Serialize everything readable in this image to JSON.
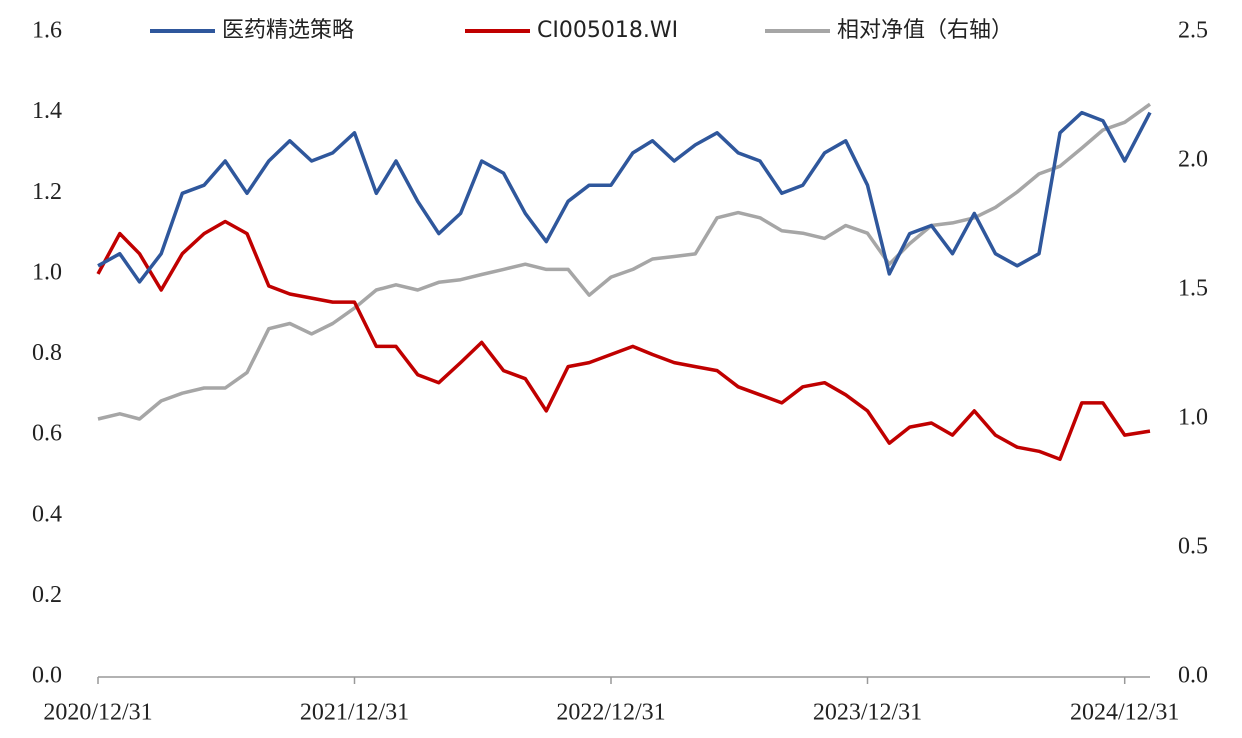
{
  "chart_data": {
    "type": "line",
    "x": [
      "2020/12/31",
      "2021/01/31",
      "2021/02/28",
      "2021/03/31",
      "2021/04/30",
      "2021/05/31",
      "2021/06/30",
      "2021/07/31",
      "2021/08/31",
      "2021/09/30",
      "2021/10/31",
      "2021/11/30",
      "2021/12/31",
      "2022/01/31",
      "2022/02/28",
      "2022/03/31",
      "2022/04/30",
      "2022/05/31",
      "2022/06/30",
      "2022/07/31",
      "2022/08/31",
      "2022/09/30",
      "2022/10/31",
      "2022/11/30",
      "2022/12/31",
      "2023/01/31",
      "2023/02/28",
      "2023/03/31",
      "2023/04/30",
      "2023/05/31",
      "2023/06/30",
      "2023/07/31",
      "2023/08/31",
      "2023/09/30",
      "2023/10/31",
      "2023/11/30",
      "2023/12/31",
      "2024/01/31",
      "2024/02/29",
      "2024/03/31",
      "2024/04/30",
      "2024/05/31",
      "2024/06/30",
      "2024/07/31",
      "2024/08/31",
      "2024/09/30",
      "2024/10/31",
      "2024/11/30",
      "2024/12/31",
      "2025/02/05"
    ],
    "xlim": [
      "2020/12/31",
      "2025/02/05"
    ],
    "xticks": [
      "2020/12/31",
      "2021/12/31",
      "2022/12/31",
      "2023/12/31",
      "2024/12/31"
    ],
    "ylim": [
      0,
      1.6
    ],
    "yticks": [
      {
        "value": 0,
        "label": "0.0"
      },
      0.2,
      0.4,
      0.6,
      0.8,
      {
        "value": 1,
        "label": "1.0"
      },
      1.2,
      1.4,
      1.6
    ],
    "y2lim": [
      0,
      2.5
    ],
    "y2ticks": [
      {
        "value": 0,
        "label": "0.0"
      },
      0.5,
      {
        "value": 1,
        "label": "1.0"
      },
      1.5,
      {
        "value": 2,
        "label": "2.0"
      },
      2.5
    ],
    "grid": false,
    "series": [
      {
        "name": "医药精选策略",
        "color": "#2f579c",
        "values": [
          1.02,
          1.05,
          0.98,
          1.05,
          1.2,
          1.22,
          1.28,
          1.2,
          1.28,
          1.33,
          1.28,
          1.3,
          1.35,
          1.2,
          1.28,
          1.18,
          1.1,
          1.15,
          1.28,
          1.25,
          1.15,
          1.08,
          1.18,
          1.22,
          1.22,
          1.3,
          1.33,
          1.28,
          1.32,
          1.35,
          1.3,
          1.28,
          1.2,
          1.22,
          1.3,
          1.33,
          1.22,
          1.0,
          1.1,
          1.12,
          1.05,
          1.15,
          1.05,
          1.02,
          1.05,
          1.35,
          1.4,
          1.38,
          1.28,
          1.4
        ]
      },
      {
        "name": "CI005018.WI",
        "color": "#c00000",
        "values": [
          1.0,
          1.1,
          1.05,
          0.96,
          1.05,
          1.1,
          1.13,
          1.1,
          0.97,
          0.95,
          0.94,
          0.93,
          0.93,
          0.82,
          0.82,
          0.75,
          0.73,
          0.78,
          0.83,
          0.76,
          0.74,
          0.66,
          0.77,
          0.78,
          0.8,
          0.82,
          0.8,
          0.78,
          0.77,
          0.76,
          0.72,
          0.7,
          0.68,
          0.72,
          0.73,
          0.7,
          0.66,
          0.58,
          0.62,
          0.63,
          0.6,
          0.66,
          0.6,
          0.57,
          0.56,
          0.54,
          0.68,
          0.68,
          0.6,
          0.61
        ]
      },
      {
        "name": "相对净值（右轴）",
        "color": "#a6a6a6",
        "axis": "y2",
        "values": [
          1.0,
          1.02,
          1.0,
          1.07,
          1.1,
          1.12,
          1.12,
          1.18,
          1.35,
          1.37,
          1.33,
          1.37,
          1.43,
          1.5,
          1.52,
          1.5,
          1.53,
          1.54,
          1.56,
          1.58,
          1.6,
          1.58,
          1.58,
          1.48,
          1.55,
          1.58,
          1.62,
          1.63,
          1.64,
          1.78,
          1.8,
          1.78,
          1.73,
          1.72,
          1.7,
          1.75,
          1.72,
          1.6,
          1.68,
          1.75,
          1.76,
          1.78,
          1.82,
          1.88,
          1.95,
          1.98,
          2.05,
          2.12,
          2.15,
          2.22
        ]
      }
    ]
  }
}
